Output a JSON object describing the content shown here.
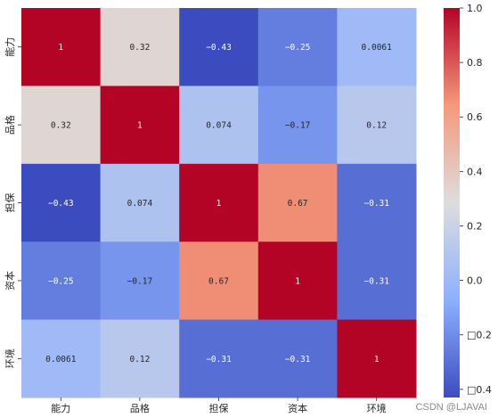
{
  "chart_data": {
    "type": "heatmap",
    "title": "",
    "xlabel": "",
    "ylabel": "",
    "categories_x": [
      "能力",
      "品格",
      "担保",
      "资本",
      "环境"
    ],
    "categories_y": [
      "能力",
      "品格",
      "担保",
      "资本",
      "环境"
    ],
    "values": [
      [
        1,
        0.32,
        -0.43,
        -0.25,
        0.0061
      ],
      [
        0.32,
        1,
        0.074,
        -0.17,
        0.12
      ],
      [
        -0.43,
        0.074,
        1,
        0.67,
        -0.31
      ],
      [
        -0.25,
        -0.17,
        0.67,
        1,
        -0.31
      ],
      [
        0.0061,
        0.12,
        -0.31,
        -0.31,
        1
      ]
    ],
    "value_labels": [
      [
        "1",
        "0.32",
        "−0.43",
        "−0.25",
        "0.0061"
      ],
      [
        "0.32",
        "1",
        "0.074",
        "−0.17",
        "0.12"
      ],
      [
        "−0.43",
        "0.074",
        "1",
        "0.67",
        "−0.31"
      ],
      [
        "−0.25",
        "−0.17",
        "0.67",
        "1",
        "−0.31"
      ],
      [
        "0.0061",
        "0.12",
        "−0.31",
        "−0.31",
        "1"
      ]
    ],
    "colormap": "coolwarm",
    "vmin": -0.43,
    "vmax": 1,
    "colorbar": {
      "ticks": [
        1.0,
        0.8,
        0.6,
        0.4,
        0.2,
        0.0,
        -0.2,
        -0.4
      ],
      "tick_labels": [
        "1.0",
        "0.8",
        "0.6",
        "0.4",
        "0.2",
        "0.0",
        "□0.2",
        "□0.4"
      ]
    }
  },
  "watermark": "CSDN @LJAVAI"
}
